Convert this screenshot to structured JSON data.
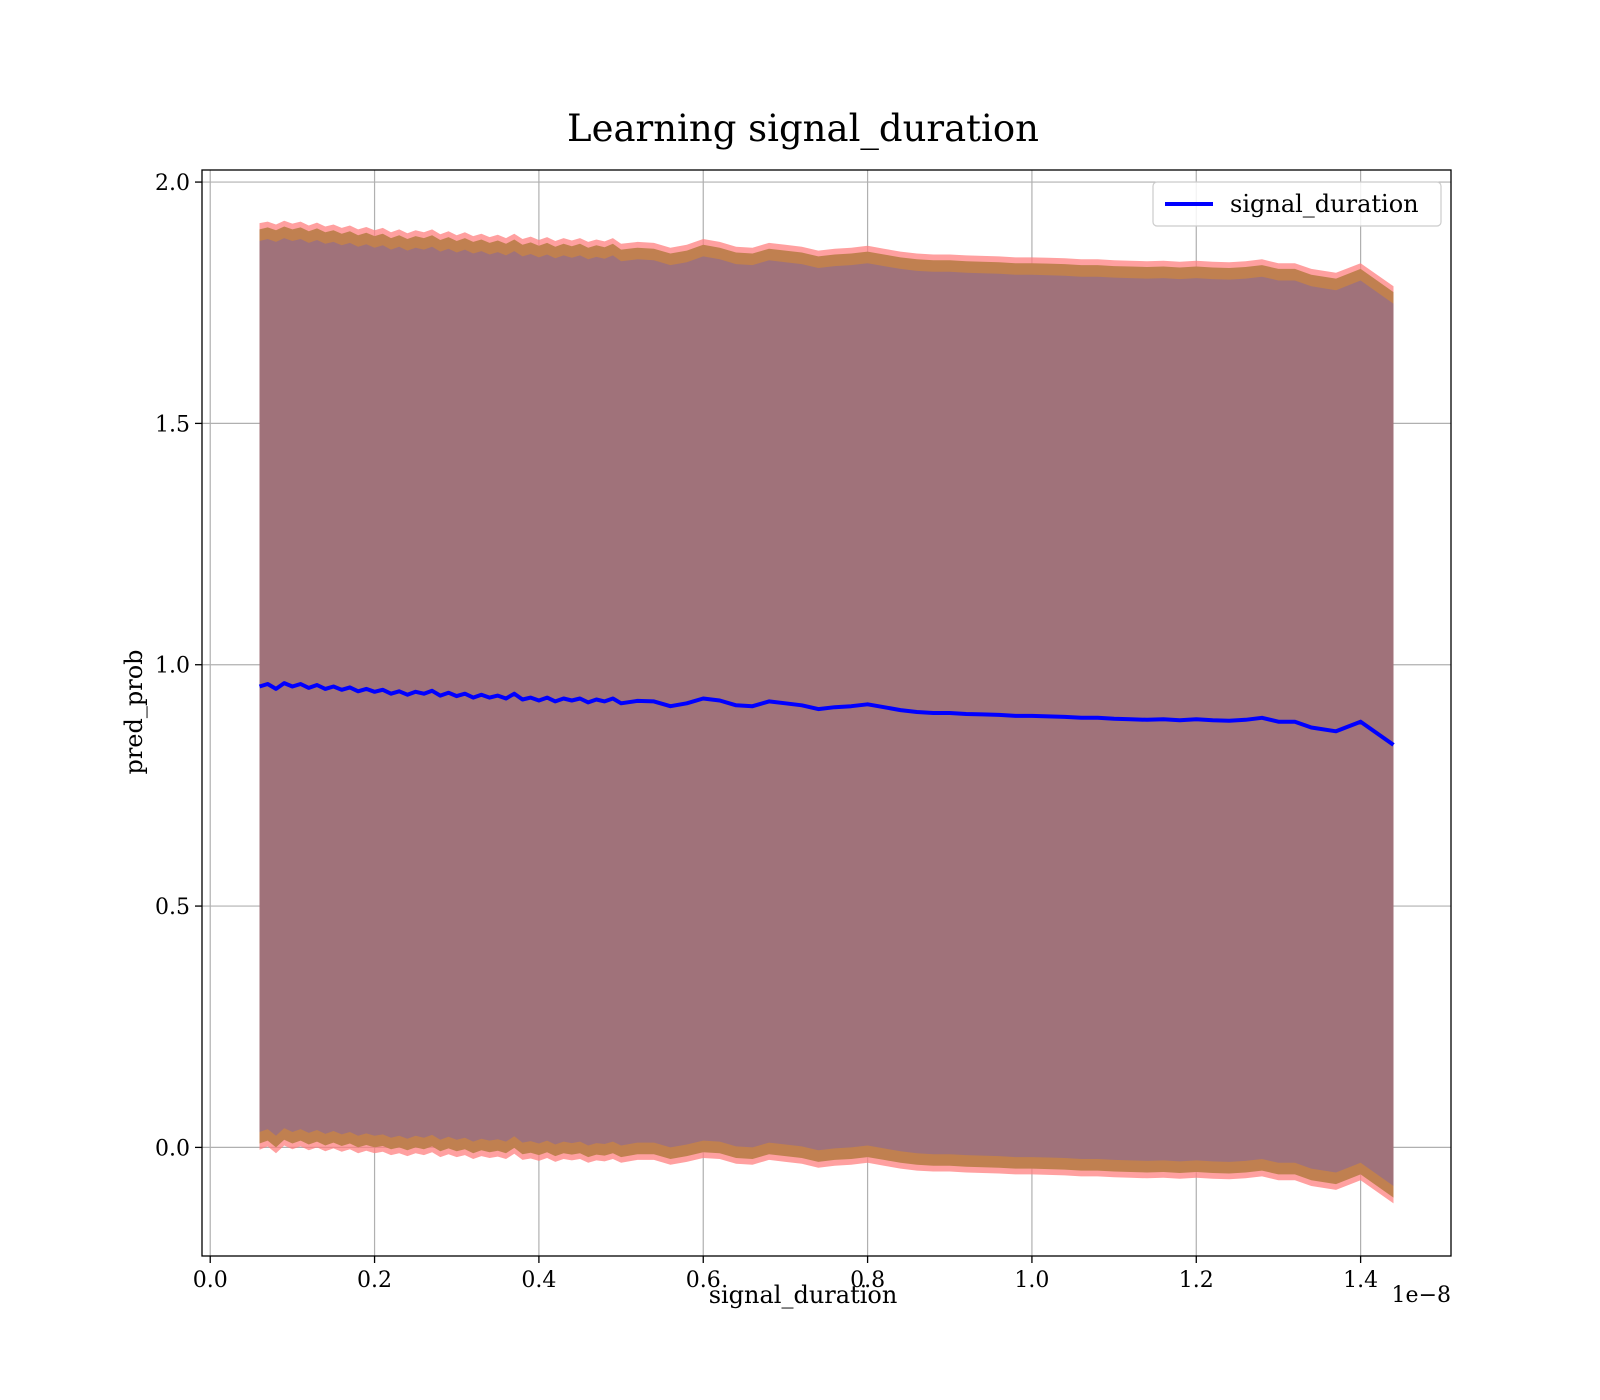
{
  "chart_data": {
    "type": "line",
    "title": "Learning signal_duration",
    "xlabel": "signal_duration",
    "ylabel": "pred_prob",
    "x_offset_label": "1e−8",
    "xlim": [
      -0.01,
      1.51
    ],
    "ylim": [
      -0.225,
      2.025
    ],
    "x_ticks": [
      0.0,
      0.2,
      0.4,
      0.6,
      0.8,
      1.0,
      1.2,
      1.4
    ],
    "x_tick_labels": [
      "0.0",
      "0.2",
      "0.4",
      "0.6",
      "0.8",
      "1.0",
      "1.2",
      "1.4"
    ],
    "y_ticks": [
      0.0,
      0.5,
      1.0,
      1.5,
      2.0
    ],
    "y_tick_labels": [
      "0.0",
      "0.5",
      "1.0",
      "1.5",
      "2.0"
    ],
    "grid": true,
    "legend": {
      "position": "top-right",
      "entries": [
        "signal_duration"
      ]
    },
    "colors": {
      "line": "#0000ff",
      "outer_band": "#ff8080",
      "middle_band": "#c08050",
      "inner_band": "#a0727a"
    },
    "series": [
      {
        "name": "signal_duration",
        "x": [
          0.06,
          0.07,
          0.08,
          0.09,
          0.1,
          0.11,
          0.12,
          0.13,
          0.14,
          0.15,
          0.16,
          0.17,
          0.18,
          0.19,
          0.2,
          0.21,
          0.22,
          0.23,
          0.24,
          0.25,
          0.26,
          0.27,
          0.28,
          0.29,
          0.3,
          0.31,
          0.32,
          0.33,
          0.34,
          0.35,
          0.36,
          0.37,
          0.38,
          0.39,
          0.4,
          0.41,
          0.42,
          0.43,
          0.44,
          0.45,
          0.46,
          0.47,
          0.48,
          0.49,
          0.5,
          0.52,
          0.54,
          0.56,
          0.58,
          0.6,
          0.62,
          0.64,
          0.66,
          0.68,
          0.7,
          0.72,
          0.74,
          0.76,
          0.78,
          0.8,
          0.82,
          0.84,
          0.86,
          0.88,
          0.9,
          0.92,
          0.94,
          0.96,
          0.98,
          1.0,
          1.02,
          1.04,
          1.06,
          1.08,
          1.1,
          1.12,
          1.14,
          1.16,
          1.18,
          1.2,
          1.22,
          1.24,
          1.26,
          1.28,
          1.3,
          1.32,
          1.34,
          1.37,
          1.4,
          1.44
        ],
        "y": [
          0.955,
          0.96,
          0.95,
          0.962,
          0.955,
          0.96,
          0.952,
          0.958,
          0.95,
          0.955,
          0.948,
          0.953,
          0.945,
          0.95,
          0.944,
          0.948,
          0.94,
          0.945,
          0.938,
          0.944,
          0.94,
          0.946,
          0.936,
          0.942,
          0.935,
          0.94,
          0.932,
          0.938,
          0.932,
          0.936,
          0.93,
          0.94,
          0.928,
          0.932,
          0.926,
          0.932,
          0.924,
          0.93,
          0.926,
          0.93,
          0.922,
          0.928,
          0.924,
          0.93,
          0.92,
          0.925,
          0.924,
          0.914,
          0.92,
          0.93,
          0.926,
          0.916,
          0.914,
          0.924,
          0.92,
          0.916,
          0.908,
          0.912,
          0.914,
          0.918,
          0.912,
          0.906,
          0.902,
          0.9,
          0.9,
          0.898,
          0.897,
          0.896,
          0.894,
          0.894,
          0.893,
          0.892,
          0.89,
          0.89,
          0.888,
          0.887,
          0.886,
          0.887,
          0.885,
          0.887,
          0.885,
          0.884,
          0.886,
          0.89,
          0.882,
          0.882,
          0.87,
          0.862,
          0.882,
          0.834
        ],
        "band_outer_upper": [
          1.915,
          1.918,
          1.912,
          1.92,
          1.914,
          1.918,
          1.91,
          1.916,
          1.908,
          1.912,
          1.905,
          1.91,
          1.902,
          1.907,
          1.9,
          1.905,
          1.896,
          1.902,
          1.894,
          1.9,
          1.896,
          1.902,
          1.892,
          1.898,
          1.89,
          1.896,
          1.888,
          1.893,
          1.886,
          1.891,
          1.884,
          1.893,
          1.882,
          1.887,
          1.88,
          1.886,
          1.878,
          1.884,
          1.879,
          1.884,
          1.876,
          1.881,
          1.877,
          1.884,
          1.872,
          1.876,
          1.874,
          1.864,
          1.87,
          1.882,
          1.876,
          1.866,
          1.864,
          1.874,
          1.87,
          1.866,
          1.858,
          1.862,
          1.864,
          1.868,
          1.862,
          1.856,
          1.852,
          1.85,
          1.85,
          1.848,
          1.847,
          1.846,
          1.844,
          1.844,
          1.843,
          1.842,
          1.84,
          1.84,
          1.838,
          1.837,
          1.836,
          1.837,
          1.835,
          1.837,
          1.835,
          1.834,
          1.836,
          1.84,
          1.832,
          1.832,
          1.82,
          1.812,
          1.832,
          1.784
        ],
        "band_outer_lower": [
          -0.005,
          0.002,
          -0.012,
          0.004,
          -0.004,
          0.002,
          -0.006,
          0.0,
          -0.008,
          -0.002,
          -0.009,
          -0.004,
          -0.012,
          -0.007,
          -0.012,
          -0.009,
          -0.016,
          -0.012,
          -0.018,
          -0.012,
          -0.016,
          -0.01,
          -0.02,
          -0.014,
          -0.02,
          -0.016,
          -0.024,
          -0.018,
          -0.022,
          -0.019,
          -0.024,
          -0.013,
          -0.026,
          -0.023,
          -0.028,
          -0.022,
          -0.03,
          -0.024,
          -0.027,
          -0.024,
          -0.032,
          -0.027,
          -0.029,
          -0.024,
          -0.032,
          -0.026,
          -0.026,
          -0.036,
          -0.03,
          -0.022,
          -0.024,
          -0.034,
          -0.036,
          -0.026,
          -0.03,
          -0.034,
          -0.042,
          -0.038,
          -0.036,
          -0.032,
          -0.038,
          -0.044,
          -0.048,
          -0.05,
          -0.05,
          -0.052,
          -0.053,
          -0.054,
          -0.056,
          -0.056,
          -0.057,
          -0.058,
          -0.06,
          -0.06,
          -0.062,
          -0.063,
          -0.064,
          -0.063,
          -0.065,
          -0.063,
          -0.065,
          -0.066,
          -0.064,
          -0.06,
          -0.068,
          -0.068,
          -0.08,
          -0.088,
          -0.068,
          -0.116
        ],
        "band_mid_upper": [
          1.902,
          1.906,
          1.9,
          1.908,
          1.902,
          1.906,
          1.898,
          1.904,
          1.896,
          1.9,
          1.893,
          1.898,
          1.89,
          1.895,
          1.888,
          1.893,
          1.884,
          1.89,
          1.882,
          1.888,
          1.884,
          1.89,
          1.88,
          1.886,
          1.878,
          1.884,
          1.876,
          1.881,
          1.874,
          1.879,
          1.872,
          1.881,
          1.87,
          1.875,
          1.868,
          1.874,
          1.866,
          1.872,
          1.867,
          1.872,
          1.864,
          1.869,
          1.865,
          1.872,
          1.86,
          1.864,
          1.862,
          1.852,
          1.858,
          1.87,
          1.864,
          1.854,
          1.852,
          1.862,
          1.858,
          1.854,
          1.846,
          1.85,
          1.852,
          1.856,
          1.85,
          1.844,
          1.84,
          1.838,
          1.838,
          1.836,
          1.835,
          1.834,
          1.832,
          1.832,
          1.831,
          1.83,
          1.828,
          1.828,
          1.826,
          1.825,
          1.824,
          1.825,
          1.823,
          1.825,
          1.823,
          1.822,
          1.824,
          1.828,
          1.82,
          1.82,
          1.808,
          1.8,
          1.82,
          1.772
        ],
        "band_mid_lower": [
          0.008,
          0.014,
          0.0,
          0.016,
          0.008,
          0.014,
          0.006,
          0.012,
          0.004,
          0.01,
          0.003,
          0.008,
          0.0,
          0.005,
          0.0,
          0.003,
          -0.004,
          0.0,
          -0.006,
          0.0,
          -0.004,
          0.002,
          -0.008,
          -0.002,
          -0.008,
          -0.004,
          -0.012,
          -0.006,
          -0.01,
          -0.007,
          -0.012,
          -0.001,
          -0.014,
          -0.011,
          -0.016,
          -0.01,
          -0.018,
          -0.012,
          -0.015,
          -0.012,
          -0.02,
          -0.015,
          -0.017,
          -0.012,
          -0.02,
          -0.014,
          -0.014,
          -0.024,
          -0.018,
          -0.01,
          -0.012,
          -0.022,
          -0.024,
          -0.014,
          -0.018,
          -0.022,
          -0.03,
          -0.026,
          -0.024,
          -0.02,
          -0.026,
          -0.032,
          -0.036,
          -0.038,
          -0.038,
          -0.04,
          -0.041,
          -0.042,
          -0.044,
          -0.044,
          -0.045,
          -0.046,
          -0.048,
          -0.048,
          -0.05,
          -0.051,
          -0.052,
          -0.051,
          -0.053,
          -0.051,
          -0.053,
          -0.054,
          -0.052,
          -0.048,
          -0.056,
          -0.056,
          -0.068,
          -0.076,
          -0.056,
          -0.104
        ],
        "band_inner_upper": [
          1.878,
          1.882,
          1.876,
          1.884,
          1.878,
          1.882,
          1.874,
          1.88,
          1.872,
          1.876,
          1.869,
          1.874,
          1.866,
          1.871,
          1.864,
          1.869,
          1.86,
          1.866,
          1.858,
          1.864,
          1.86,
          1.866,
          1.856,
          1.862,
          1.854,
          1.86,
          1.852,
          1.857,
          1.85,
          1.855,
          1.848,
          1.857,
          1.846,
          1.851,
          1.844,
          1.85,
          1.842,
          1.848,
          1.843,
          1.848,
          1.84,
          1.845,
          1.841,
          1.848,
          1.836,
          1.84,
          1.838,
          1.828,
          1.834,
          1.846,
          1.84,
          1.83,
          1.828,
          1.838,
          1.834,
          1.83,
          1.822,
          1.826,
          1.828,
          1.832,
          1.826,
          1.82,
          1.816,
          1.814,
          1.814,
          1.812,
          1.811,
          1.81,
          1.808,
          1.808,
          1.807,
          1.806,
          1.804,
          1.804,
          1.802,
          1.801,
          1.8,
          1.801,
          1.799,
          1.801,
          1.799,
          1.798,
          1.8,
          1.804,
          1.796,
          1.796,
          1.784,
          1.776,
          1.796,
          1.748
        ],
        "band_inner_lower": [
          0.032,
          0.038,
          0.024,
          0.04,
          0.032,
          0.038,
          0.03,
          0.036,
          0.028,
          0.034,
          0.027,
          0.032,
          0.024,
          0.029,
          0.024,
          0.027,
          0.02,
          0.024,
          0.018,
          0.024,
          0.02,
          0.026,
          0.016,
          0.022,
          0.016,
          0.02,
          0.012,
          0.018,
          0.014,
          0.017,
          0.012,
          0.023,
          0.01,
          0.013,
          0.008,
          0.014,
          0.006,
          0.012,
          0.009,
          0.012,
          0.004,
          0.009,
          0.007,
          0.012,
          0.004,
          0.01,
          0.01,
          0.0,
          0.006,
          0.014,
          0.012,
          0.002,
          0.0,
          0.01,
          0.006,
          0.002,
          -0.006,
          -0.002,
          0.0,
          0.004,
          -0.002,
          -0.008,
          -0.012,
          -0.014,
          -0.014,
          -0.016,
          -0.017,
          -0.018,
          -0.02,
          -0.02,
          -0.021,
          -0.022,
          -0.024,
          -0.024,
          -0.026,
          -0.027,
          -0.028,
          -0.027,
          -0.029,
          -0.027,
          -0.029,
          -0.03,
          -0.028,
          -0.024,
          -0.032,
          -0.032,
          -0.044,
          -0.052,
          -0.032,
          -0.08
        ]
      }
    ]
  }
}
